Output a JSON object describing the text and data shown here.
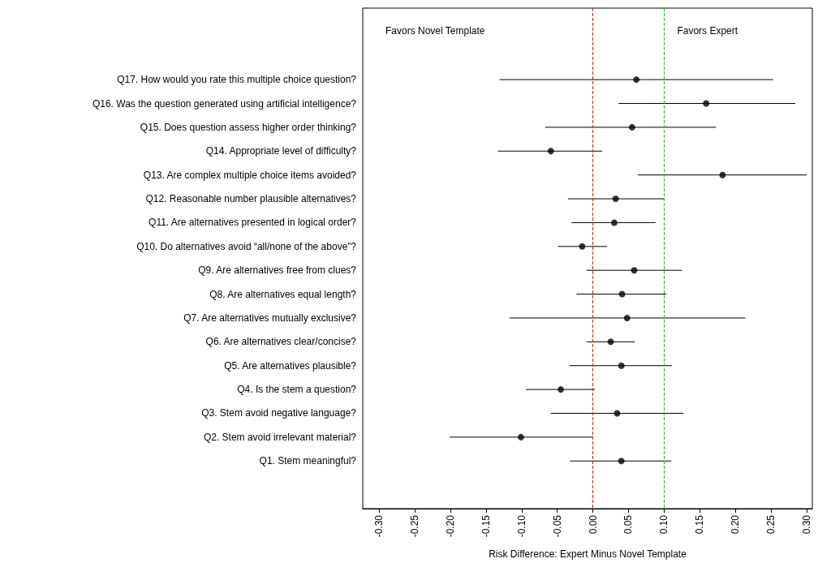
{
  "chart_data": {
    "type": "scatter",
    "orientation": "horizontal",
    "xlabel": "Risk Difference: Expert Minus Novel Template",
    "annotations": [
      "Favors Novel Template",
      "Favors Expert"
    ],
    "categories": [
      "Q17. How would you rate this multiple choice question?",
      "Q16. Was the question generated using artificial intelligence?",
      "Q15. Does question assess higher order thinking?",
      "Q14. Appropriate level of difficulty?",
      "Q13. Are complex multiple choice items avoided?",
      "Q12. Reasonable number plausible alternatives?",
      "Q11. Are alternatives presented in logical order?",
      "Q10. Do alternatives avoid “all/none of the above”?",
      "Q9. Are alternatives free from clues?",
      "Q8. Are alternatives equal length?",
      "Q7. Are alternatives mutually exclusive?",
      "Q6. Are alternatives clear/concise?",
      "Q5. Are alternatives plausible?",
      "Q4. Is the stem a question?",
      "Q3. Stem avoid negative language?",
      "Q2. Stem avoid irrelevant material?",
      "Q1. Stem meaningful?"
    ],
    "series": [
      {
        "color": "#000000",
        "values": [
          0.061,
          0.159,
          0.055,
          -0.059,
          0.182,
          0.032,
          0.03,
          -0.015,
          0.058,
          0.041,
          0.048,
          0.025,
          0.04,
          -0.045,
          0.034,
          -0.101,
          0.04
        ],
        "errors": [
          [
            -0.131,
            0.253
          ],
          [
            0.036,
            0.284
          ],
          [
            -0.067,
            0.173
          ],
          [
            -0.133,
            0.013
          ],
          [
            0.063,
            0.3
          ],
          [
            -0.035,
            0.1
          ],
          [
            -0.03,
            0.088
          ],
          [
            -0.049,
            0.02
          ],
          [
            -0.009,
            0.125
          ],
          [
            -0.023,
            0.103
          ],
          [
            -0.117,
            0.214
          ],
          [
            -0.009,
            0.059
          ],
          [
            -0.033,
            0.111
          ],
          [
            -0.094,
            0.003
          ],
          [
            -0.059,
            0.127
          ],
          [
            -0.201,
            0.0
          ],
          [
            -0.032,
            0.11
          ]
        ]
      }
    ],
    "xlim": [
      -0.323,
      0.308
    ],
    "xticks": [
      {
        "value": -0.3,
        "label": "-0.30"
      },
      {
        "value": -0.25,
        "label": "-0.25"
      },
      {
        "value": -0.2,
        "label": "-0.20"
      },
      {
        "value": -0.15,
        "label": "-0.15"
      },
      {
        "value": -0.1,
        "label": "-0.10"
      },
      {
        "value": -0.05,
        "label": "-0.05"
      },
      {
        "value": 0,
        "label": "0.00"
      },
      {
        "value": 0.05,
        "label": "0.05"
      },
      {
        "value": 0.1,
        "label": "0.10"
      },
      {
        "value": 0.15,
        "label": "0.15"
      },
      {
        "value": 0.2,
        "label": "0.20"
      },
      {
        "value": 0.25,
        "label": "0.25"
      },
      {
        "value": 0.3,
        "label": "0.30"
      }
    ],
    "ref_lines": [
      {
        "axis": "x",
        "value": 0,
        "color": "#ff0000",
        "line_style": "dashed"
      },
      {
        "axis": "x",
        "value": 0.1,
        "color": "#00cc00",
        "line_style": "dashed"
      }
    ],
    "marker": "circle",
    "grid": false
  }
}
